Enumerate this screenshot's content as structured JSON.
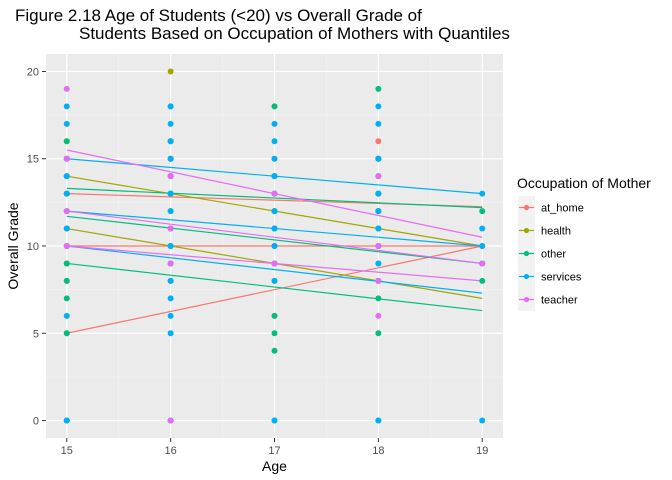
{
  "chart_data": {
    "type": "scatter",
    "title_line1": "Figure 2.18 Age of Students (<20) vs Overall Grade of",
    "title_line2": "Students Based on Occupation of Mothers with Quantiles",
    "xlabel": "Age",
    "ylabel": "Overall Grade",
    "xlim": [
      14.8,
      19.2
    ],
    "ylim": [
      -1,
      21
    ],
    "x_ticks": [
      15,
      16,
      17,
      18,
      19
    ],
    "y_ticks": [
      0,
      5,
      10,
      15,
      20
    ],
    "legend_title": "Occupation of Mother",
    "legend_position": "right",
    "grid": true,
    "series": [
      {
        "name": "at_home",
        "color": "#F8766D",
        "points": [
          [
            15,
            0
          ],
          [
            15,
            5
          ],
          [
            15,
            8
          ],
          [
            15,
            10
          ],
          [
            15,
            11
          ],
          [
            15,
            13
          ],
          [
            15,
            14
          ],
          [
            15,
            15
          ],
          [
            16,
            10
          ],
          [
            16,
            13
          ],
          [
            16,
            14
          ],
          [
            16,
            15
          ],
          [
            16,
            16
          ],
          [
            17,
            6
          ],
          [
            17,
            10
          ],
          [
            17,
            11
          ],
          [
            17,
            12
          ],
          [
            17,
            13
          ],
          [
            17,
            14
          ],
          [
            17,
            15
          ],
          [
            18,
            8
          ],
          [
            18,
            10
          ],
          [
            18,
            11
          ],
          [
            18,
            12
          ],
          [
            18,
            13
          ],
          [
            18,
            15
          ],
          [
            18,
            16
          ],
          [
            19,
            10
          ]
        ],
        "quantile_lines": [
          [
            13.0,
            12.25
          ],
          [
            10.0,
            10.0
          ],
          [
            5.0,
            10.0
          ]
        ]
      },
      {
        "name": "health",
        "color": "#A3A500",
        "points": [
          [
            15,
            0
          ],
          [
            15,
            9
          ],
          [
            15,
            13
          ],
          [
            15,
            16
          ],
          [
            16,
            10
          ],
          [
            16,
            13
          ],
          [
            16,
            15
          ],
          [
            16,
            16
          ],
          [
            16,
            20
          ],
          [
            17,
            9
          ],
          [
            17,
            12
          ],
          [
            17,
            14
          ],
          [
            17,
            18
          ],
          [
            18,
            10
          ],
          [
            18,
            11
          ],
          [
            18,
            12
          ],
          [
            18,
            13
          ],
          [
            18,
            15
          ],
          [
            19,
            9
          ]
        ],
        "quantile_lines": [
          [
            14.0,
            10.0
          ],
          [
            11.0,
            7.0
          ]
        ]
      },
      {
        "name": "other",
        "color": "#00BF7D",
        "points": [
          [
            15,
            0
          ],
          [
            15,
            5
          ],
          [
            15,
            7
          ],
          [
            15,
            8
          ],
          [
            15,
            9
          ],
          [
            15,
            10
          ],
          [
            15,
            11
          ],
          [
            15,
            12
          ],
          [
            15,
            13
          ],
          [
            15,
            14
          ],
          [
            15,
            15
          ],
          [
            15,
            16
          ],
          [
            16,
            0
          ],
          [
            16,
            8
          ],
          [
            16,
            9
          ],
          [
            16,
            10
          ],
          [
            16,
            11
          ],
          [
            16,
            12
          ],
          [
            16,
            13
          ],
          [
            16,
            14
          ],
          [
            16,
            15
          ],
          [
            16,
            16
          ],
          [
            16,
            18
          ],
          [
            17,
            0
          ],
          [
            17,
            4
          ],
          [
            17,
            5
          ],
          [
            17,
            6
          ],
          [
            17,
            8
          ],
          [
            17,
            9
          ],
          [
            17,
            10
          ],
          [
            17,
            11
          ],
          [
            17,
            12
          ],
          [
            17,
            13
          ],
          [
            17,
            14
          ],
          [
            17,
            18
          ],
          [
            18,
            0
          ],
          [
            18,
            5
          ],
          [
            18,
            7
          ],
          [
            18,
            9
          ],
          [
            18,
            10
          ],
          [
            18,
            11
          ],
          [
            18,
            12
          ],
          [
            18,
            13
          ],
          [
            18,
            14
          ],
          [
            18,
            15
          ],
          [
            18,
            19
          ],
          [
            19,
            8
          ],
          [
            19,
            9
          ],
          [
            19,
            12
          ]
        ],
        "quantile_lines": [
          [
            13.3,
            12.2
          ],
          [
            11.7,
            9.0
          ],
          [
            9.0,
            6.3
          ]
        ]
      },
      {
        "name": "services",
        "color": "#00B0F6",
        "points": [
          [
            15,
            0
          ],
          [
            15,
            6
          ],
          [
            15,
            10
          ],
          [
            15,
            11
          ],
          [
            15,
            12
          ],
          [
            15,
            13
          ],
          [
            15,
            14
          ],
          [
            15,
            15
          ],
          [
            15,
            17
          ],
          [
            15,
            18
          ],
          [
            16,
            0
          ],
          [
            16,
            5
          ],
          [
            16,
            6
          ],
          [
            16,
            7
          ],
          [
            16,
            8
          ],
          [
            16,
            9
          ],
          [
            16,
            10
          ],
          [
            16,
            11
          ],
          [
            16,
            12
          ],
          [
            16,
            13
          ],
          [
            16,
            14
          ],
          [
            16,
            15
          ],
          [
            16,
            16
          ],
          [
            16,
            17
          ],
          [
            16,
            18
          ],
          [
            17,
            0
          ],
          [
            17,
            8
          ],
          [
            17,
            9
          ],
          [
            17,
            10
          ],
          [
            17,
            11
          ],
          [
            17,
            12
          ],
          [
            17,
            13
          ],
          [
            17,
            14
          ],
          [
            17,
            15
          ],
          [
            17,
            16
          ],
          [
            17,
            17
          ],
          [
            18,
            0
          ],
          [
            18,
            8
          ],
          [
            18,
            9
          ],
          [
            18,
            10
          ],
          [
            18,
            11
          ],
          [
            18,
            12
          ],
          [
            18,
            13
          ],
          [
            18,
            14
          ],
          [
            18,
            15
          ],
          [
            18,
            17
          ],
          [
            18,
            18
          ],
          [
            19,
            0
          ],
          [
            19,
            9
          ],
          [
            19,
            10
          ],
          [
            19,
            11
          ],
          [
            19,
            13
          ]
        ],
        "quantile_lines": [
          [
            15.0,
            13.0
          ],
          [
            12.0,
            10.0
          ],
          [
            10.0,
            7.3
          ]
        ]
      },
      {
        "name": "teacher",
        "color": "#E76BF3",
        "points": [
          [
            15,
            10
          ],
          [
            15,
            12
          ],
          [
            15,
            15
          ],
          [
            15,
            19
          ],
          [
            16,
            0
          ],
          [
            16,
            9
          ],
          [
            16,
            11
          ],
          [
            16,
            14
          ],
          [
            17,
            9
          ],
          [
            17,
            13
          ],
          [
            18,
            6
          ],
          [
            18,
            8
          ],
          [
            18,
            10
          ],
          [
            18,
            14
          ],
          [
            19,
            9
          ]
        ],
        "quantile_lines": [
          [
            15.5,
            10.5
          ],
          [
            12.0,
            9.0
          ],
          [
            10.0,
            8.0
          ]
        ]
      }
    ]
  }
}
